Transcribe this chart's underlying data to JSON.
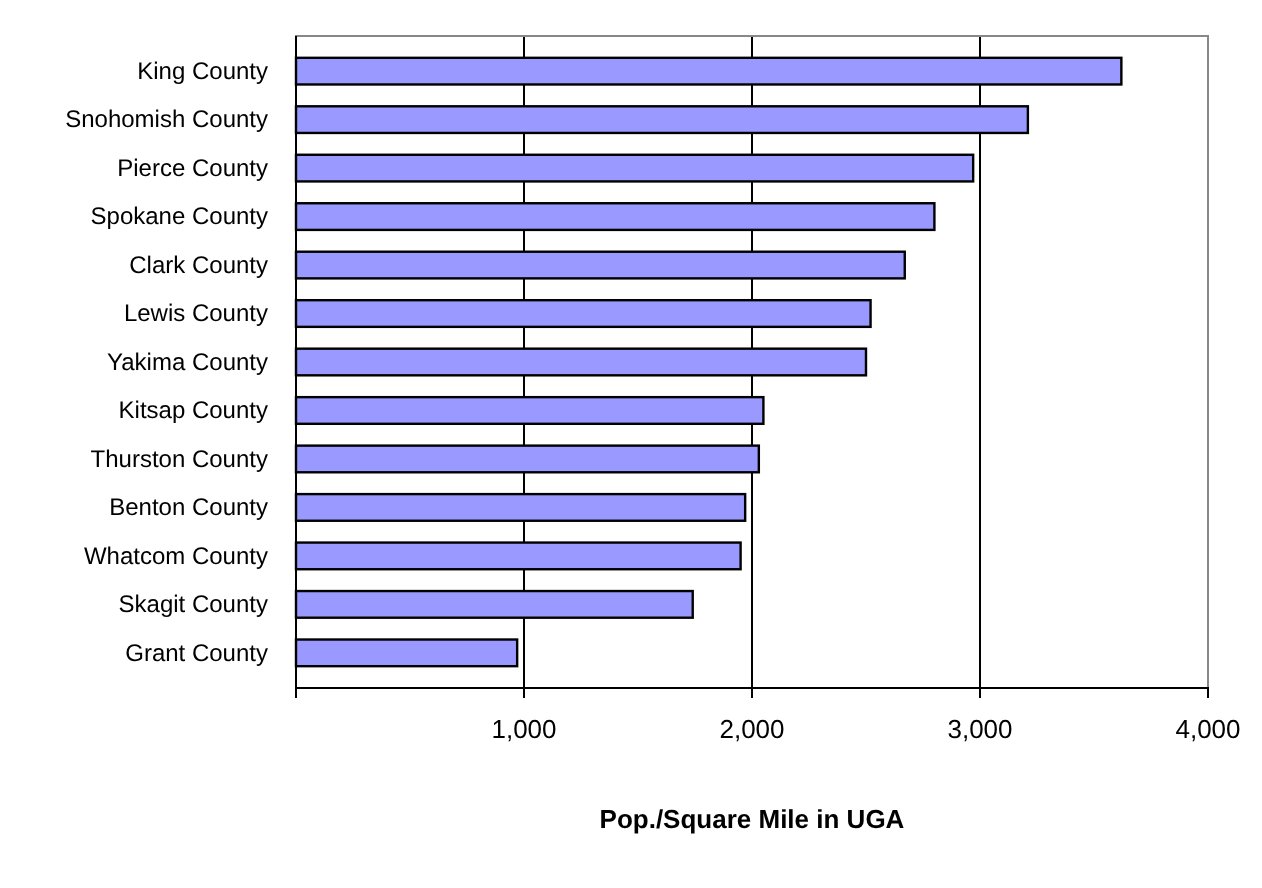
{
  "chart_data": {
    "type": "bar",
    "orientation": "horizontal",
    "xlabel": "Pop./Square Mile in UGA",
    "categories": [
      "King County",
      "Snohomish County",
      "Pierce County",
      "Spokane County",
      "Clark County",
      "Lewis County",
      "Yakima County",
      "Kitsap County",
      "Thurston County",
      "Benton County",
      "Whatcom County",
      "Skagit County",
      "Grant County"
    ],
    "values": [
      3620,
      3210,
      2970,
      2800,
      2670,
      2520,
      2500,
      2050,
      2030,
      1970,
      1950,
      1740,
      970
    ],
    "color": "#9999ff",
    "xlim": [
      0,
      4000
    ],
    "xticks": [
      {
        "value": 0,
        "label": null
      },
      {
        "value": 1000,
        "label": "1,000"
      },
      {
        "value": 2000,
        "label": "2,000"
      },
      {
        "value": 3000,
        "label": "3,000"
      },
      {
        "value": 4000,
        "label": "4,000"
      }
    ],
    "grid": "x"
  }
}
